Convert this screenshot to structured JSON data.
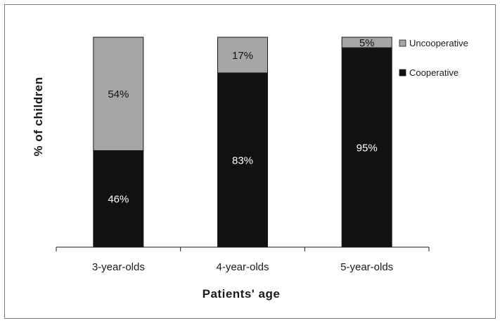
{
  "chart_data": {
    "type": "bar",
    "stacked": true,
    "title": "",
    "xlabel": "Patients' age",
    "ylabel": "% of children",
    "categories": [
      "3-year-olds",
      "4-year-olds",
      "5-year-olds"
    ],
    "ylim": [
      0,
      100
    ],
    "grid": false,
    "legend_position": "top-right",
    "series": [
      {
        "name": "Cooperative",
        "values": [
          46,
          83,
          95
        ],
        "labels": [
          "46%",
          "83%",
          "95%"
        ],
        "color": "#111111",
        "label_color": "#ffffff"
      },
      {
        "name": "Uncooperative",
        "values": [
          54,
          17,
          5
        ],
        "labels": [
          "54%",
          "17%",
          "5%"
        ],
        "color": "#a6a6a6",
        "label_color": "#111111"
      }
    ],
    "legend": [
      {
        "name": "Uncooperative",
        "color": "#a6a6a6"
      },
      {
        "name": "Cooperative",
        "color": "#111111"
      }
    ]
  }
}
